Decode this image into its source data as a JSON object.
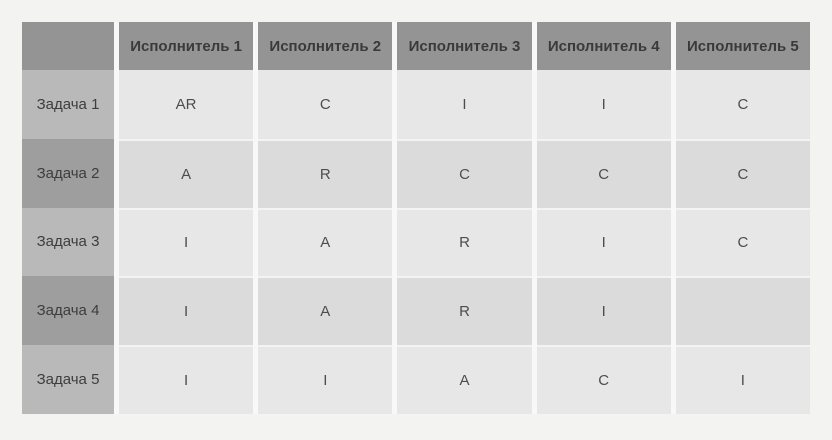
{
  "page": {
    "background": "#f3f3f2"
  },
  "table": {
    "corner_label": "",
    "column_headers": [
      "Исполнитель 1",
      "Исполнитель 2",
      "Исполнитель 3",
      "Исполнитель 4",
      "Исполнитель 5"
    ],
    "rows": [
      {
        "label": "Задача 1",
        "cells": [
          "AR",
          "C",
          "I",
          "I",
          "C"
        ]
      },
      {
        "label": "Задача 2",
        "cells": [
          "A",
          "R",
          "C",
          "C",
          "C"
        ]
      },
      {
        "label": "Задача 3",
        "cells": [
          "I",
          "A",
          "R",
          "I",
          "C"
        ]
      },
      {
        "label": "Задача 4",
        "cells": [
          "I",
          "A",
          "R",
          "I",
          ""
        ]
      },
      {
        "label": "Задача 5",
        "cells": [
          "I",
          "I",
          "A",
          "C",
          "I"
        ]
      }
    ],
    "colors": {
      "header_bg": "#949494",
      "header_text": "#3a3a3a",
      "row_header_odd_bg": "#b9b9b9",
      "row_header_even_bg": "#9e9e9e",
      "row_header_text": "#3d3d3d",
      "data_row_odd_bg": "#e7e7e7",
      "data_row_even_bg": "#dbdbdb",
      "cell_text": "#4d4d4d",
      "column_gap": "#f8f8f8"
    }
  },
  "chart_data": {
    "type": "table",
    "columns": [
      "",
      "Исполнитель 1",
      "Исполнитель 2",
      "Исполнитель 3",
      "Исполнитель 4",
      "Исполнитель 5"
    ],
    "rows": [
      [
        "Задача 1",
        "AR",
        "C",
        "I",
        "I",
        "C"
      ],
      [
        "Задача 2",
        "A",
        "R",
        "C",
        "C",
        "C"
      ],
      [
        "Задача 3",
        "I",
        "A",
        "R",
        "I",
        "C"
      ],
      [
        "Задача 4",
        "I",
        "A",
        "R",
        "I",
        ""
      ],
      [
        "Задача 5",
        "I",
        "I",
        "A",
        "C",
        "I"
      ]
    ]
  }
}
